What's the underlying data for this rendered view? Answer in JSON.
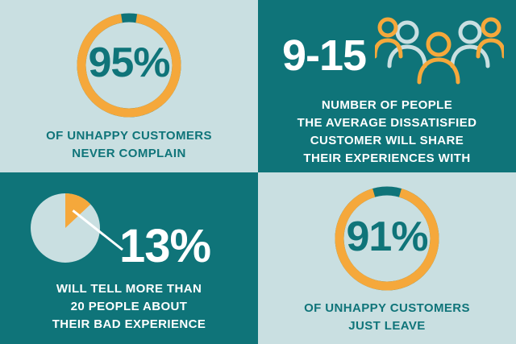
{
  "colors": {
    "teal": "#0f7479",
    "light": "#c9dfe1",
    "orange": "#f5a83b",
    "dark_teal": "#0a5f63",
    "white": "#ffffff"
  },
  "stats": {
    "never_complain": {
      "value": "95%",
      "fraction": 0.95,
      "caption_lines": [
        "OF UNHAPPY CUSTOMERS",
        "NEVER COMPLAIN"
      ]
    },
    "share_count": {
      "value": "9-15",
      "icon": "people-group-icon",
      "caption_lines": [
        "NUMBER OF PEOPLE",
        "THE AVERAGE DISSATISFIED",
        "CUSTOMER WILL SHARE",
        "THEIR EXPERIENCES WITH"
      ]
    },
    "tell_more": {
      "value": "13%",
      "fraction": 0.13,
      "caption_lines": [
        "WILL TELL MORE THAN",
        "20 PEOPLE ABOUT",
        "THEIR BAD EXPERIENCE"
      ]
    },
    "just_leave": {
      "value": "91%",
      "fraction": 0.91,
      "caption_lines": [
        "OF UNHAPPY CUSTOMERS",
        "JUST LEAVE"
      ]
    }
  }
}
